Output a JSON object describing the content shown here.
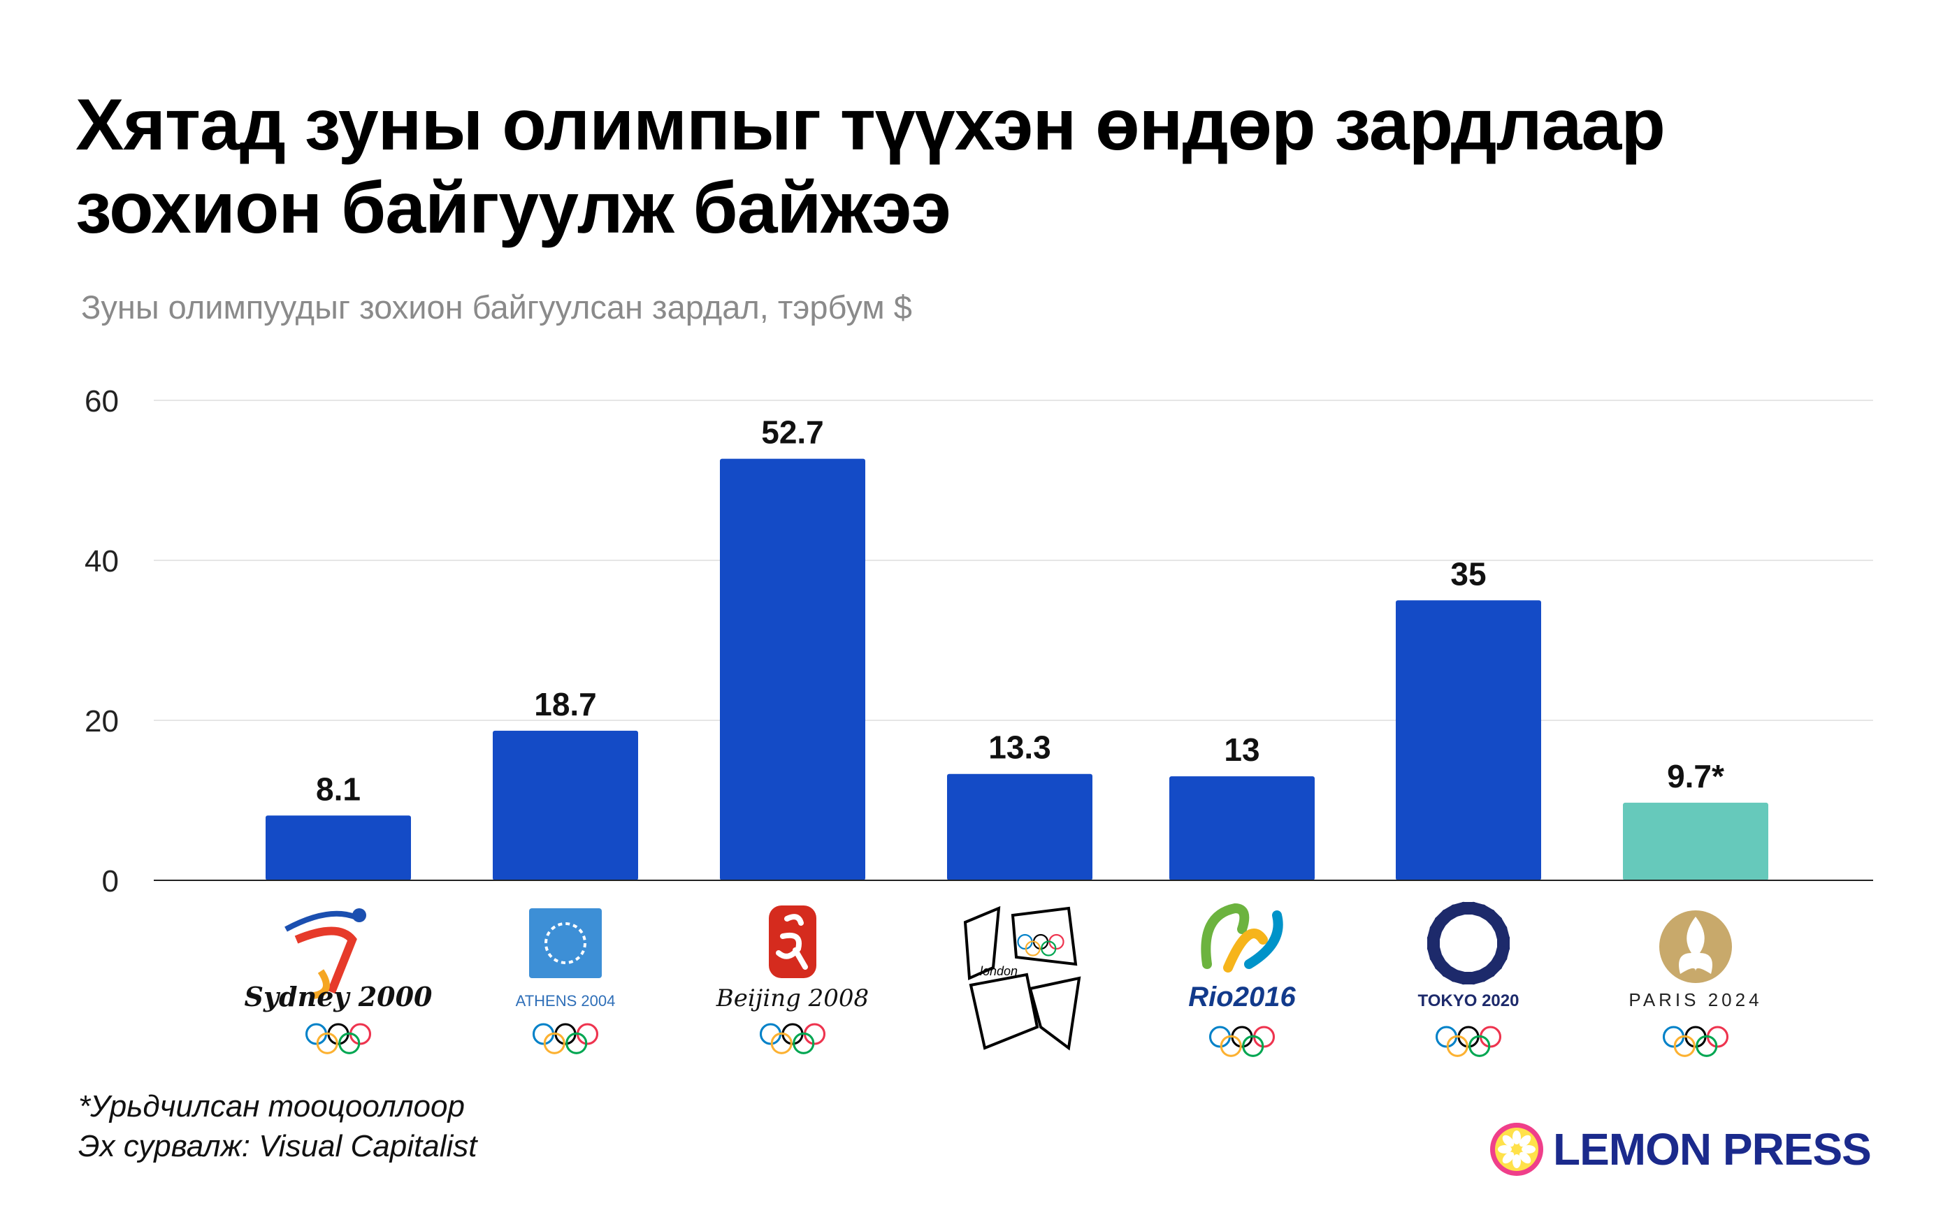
{
  "title_line1": "Хятад зуны олимпыг түүхэн өндөр зардлаар",
  "title_line2": "зохион байгуулж байжээ",
  "subtitle": "Зуны олимпуудыг зохион байгуулсан зардал, тэрбум $",
  "chart_data": {
    "type": "bar",
    "categories": [
      "Sydney 2000",
      "ATHENS 2004",
      "Beijing 2008",
      "london",
      "Rio2016",
      "TOKYO 2020",
      "PARIS 2024"
    ],
    "values": [
      8.1,
      18.7,
      52.7,
      13.3,
      13,
      35,
      9.7
    ],
    "value_labels": [
      "8.1",
      "18.7",
      "52.7",
      "13.3",
      "13",
      "35",
      "9.7*"
    ],
    "ylim": [
      0,
      60
    ],
    "yticks": [
      0,
      20,
      40,
      60
    ],
    "grid": true,
    "colors": {
      "default": "#144bc6",
      "estimate": "#66c9bb"
    },
    "estimate_index": 6
  },
  "footnote": "*Урьдчилсан тооцооллоор",
  "source": "Эх сурвалж: Visual Capitalist",
  "brand": {
    "name": "LEMON PRESS",
    "color": "#1b2a8c",
    "icon": "lemon-icon"
  },
  "olympic_ring_colors": [
    "#0081c8",
    "#fcb131",
    "#000000",
    "#00a651",
    "#ee334e"
  ]
}
